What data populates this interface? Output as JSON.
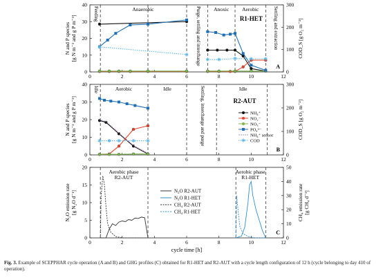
{
  "caption": {
    "bold": "Fig. 3.",
    "text": "Example of SCEPPHAR cycle operation (A and B) and GHG profiles (C) obtained for R1-HET and R2-AUT with a cycle length configuration of 12 h (cycle belonging to day 410 of operation)."
  },
  "colors": {
    "nh4": "#111111",
    "no2": "#e8432a",
    "no3": "#7ab648",
    "po4": "#1f6fb5",
    "nh4_sensor": "#b993c9",
    "cod": "#5eb7e6",
    "n2o_aut": "#333333",
    "n2o_het": "#2f8fd0"
  },
  "chart_data": [
    {
      "id": "A",
      "type": "line",
      "panel_label": "A",
      "ylabel": "N and P species\n[g N m⁻³ and g P m⁻³]",
      "y2label": "COD_S [g O₂ m⁻³]",
      "xlim": [
        0,
        12
      ],
      "ylim": [
        0,
        40
      ],
      "y2lim": [
        0,
        300
      ],
      "xticks": [
        0,
        2,
        4,
        6,
        8,
        10,
        12
      ],
      "yticks": [
        0,
        10,
        20,
        30,
        40
      ],
      "y2ticks": [
        0,
        100,
        200,
        300
      ],
      "phase_lines": [
        0.65,
        3.6,
        6,
        7.3,
        9,
        10.9
      ],
      "phase_labels": [
        {
          "text": "Feeding",
          "x": 0.3,
          "vertical": true
        },
        {
          "text": "Anaerobic",
          "x": 3.3,
          "vertical": false
        },
        {
          "text": "Purge, settling and interchange",
          "x": 6.65,
          "vertical": true
        },
        {
          "text": "Anoxic",
          "x": 8.15,
          "vertical": false
        },
        {
          "text": "Aerobic",
          "x": 9.95,
          "vertical": false
        },
        {
          "text": "Settling and extraction",
          "x": 11.45,
          "vertical": true
        }
      ],
      "reactor_label": "R1-HET",
      "series": [
        {
          "key": "nh4",
          "axis": "left",
          "x": [
            0.6,
            6.0
          ],
          "y": [
            28.5,
            30.0
          ]
        },
        {
          "key": "nh4",
          "axis": "left",
          "x": [
            7.3,
            7.9,
            8.5,
            9.0,
            9.5,
            10.0,
            10.9
          ],
          "y": [
            13.0,
            13.0,
            13.0,
            13.0,
            9.5,
            2.0,
            0.5
          ]
        },
        {
          "key": "no2",
          "axis": "left",
          "x": [
            0.6,
            1.2,
            1.8,
            2.5,
            3.6,
            6.0
          ],
          "y": [
            0.3,
            0.3,
            0.3,
            0.3,
            0.3,
            0.3
          ]
        },
        {
          "key": "no2",
          "axis": "left",
          "x": [
            7.3,
            8.0,
            8.7,
            9.0,
            9.5,
            10.0,
            10.9
          ],
          "y": [
            0.3,
            0.3,
            0.3,
            0.3,
            3.0,
            7.0,
            7.0
          ]
        },
        {
          "key": "no3",
          "axis": "left",
          "x": [
            0.6,
            1.2,
            1.8,
            2.5,
            3.6,
            6.0
          ],
          "y": [
            0.5,
            0.5,
            0.5,
            0.5,
            0.5,
            0.5
          ]
        },
        {
          "key": "no3",
          "axis": "left",
          "x": [
            7.3,
            8.0,
            9.0,
            10.0,
            10.9
          ],
          "y": [
            0.5,
            0.5,
            0.5,
            0.5,
            0.5
          ]
        },
        {
          "key": "po4",
          "axis": "left",
          "x": [
            0.6,
            1.1,
            1.6,
            2.5,
            3.6,
            6.0
          ],
          "y": [
            15.0,
            19.0,
            23.0,
            28.0,
            28.5,
            31.0
          ]
        },
        {
          "key": "po4",
          "axis": "left",
          "x": [
            7.3,
            7.8,
            8.3,
            8.7,
            9.0,
            9.5,
            10.0,
            10.9
          ],
          "y": [
            24.0,
            23.5,
            22.0,
            22.5,
            23.0,
            11.0,
            4.0,
            1.0
          ]
        },
        {
          "key": "cod",
          "axis": "right",
          "x": [
            0.6,
            6.0
          ],
          "y": [
            112,
            78
          ]
        },
        {
          "key": "cod",
          "axis": "right",
          "x": [
            7.3,
            8.0,
            9.0,
            10.0,
            10.9
          ],
          "y": [
            55,
            55,
            60,
            58,
            58
          ]
        }
      ]
    },
    {
      "id": "B",
      "type": "line",
      "panel_label": "B",
      "ylabel": "N and P species\n[g N m⁻³ and g P m⁻³]",
      "y2label": "COD_S [g O₂ m⁻³]",
      "xlim": [
        0,
        12
      ],
      "ylim": [
        0,
        40
      ],
      "y2lim": [
        0,
        300
      ],
      "xticks": [
        0,
        2,
        4,
        6,
        8,
        10,
        12
      ],
      "yticks": [
        0,
        10,
        20,
        30,
        40
      ],
      "y2ticks": [
        0,
        100,
        200,
        300
      ],
      "phase_lines": [
        0.65,
        3.6,
        6,
        7.85,
        11.0
      ],
      "phase_labels": [
        {
          "text": "Idle",
          "x": 0.3,
          "vertical": true
        },
        {
          "text": "Aerobic",
          "x": 2.1,
          "vertical": false
        },
        {
          "text": "Idle",
          "x": 4.8,
          "vertical": false
        },
        {
          "text": "Settling, interchange and purge",
          "x": 6.9,
          "vertical": true
        },
        {
          "text": "Idle",
          "x": 9.5,
          "vertical": false
        }
      ],
      "reactor_label": "R2-AUT",
      "legend": [
        {
          "key": "nh4",
          "label": "NH₄⁺",
          "marker": "circle"
        },
        {
          "key": "no2",
          "label": "NO₂⁻",
          "marker": "circle"
        },
        {
          "key": "no3",
          "label": "NO₃⁻",
          "marker": "circle"
        },
        {
          "key": "po4",
          "label": "PO₄³⁻",
          "marker": "square"
        },
        {
          "key": "nh4_sensor",
          "label": "NH₄⁺ sensor",
          "marker": "line"
        },
        {
          "key": "cod",
          "label": "COD",
          "marker": "star"
        }
      ],
      "series": [
        {
          "key": "nh4",
          "axis": "left",
          "x": [
            0.6,
            1.0,
            1.8,
            2.7,
            3.6
          ],
          "y": [
            19.5,
            18.5,
            12.0,
            5.0,
            0.5
          ]
        },
        {
          "key": "nh4_sensor",
          "axis": "left",
          "x": [
            0.6,
            1.0,
            1.8,
            2.7,
            3.6
          ],
          "y": [
            20.0,
            19.0,
            12.5,
            5.5,
            1.0
          ]
        },
        {
          "key": "no2",
          "axis": "left",
          "x": [
            0.6,
            1.2,
            1.8,
            2.7,
            3.6
          ],
          "y": [
            0.3,
            0.5,
            5.0,
            14.5,
            16.5
          ]
        },
        {
          "key": "no3",
          "axis": "left",
          "x": [
            0.6,
            1.2,
            1.8,
            2.7,
            3.6
          ],
          "y": [
            0.3,
            0.3,
            0.3,
            0.5,
            0.5
          ]
        },
        {
          "key": "po4",
          "axis": "left",
          "x": [
            0.6,
            0.9,
            1.3,
            1.8,
            2.3,
            2.8,
            3.6
          ],
          "y": [
            32.0,
            31.0,
            30.5,
            30.0,
            29.0,
            28.0,
            26.5
          ]
        },
        {
          "key": "cod",
          "axis": "right",
          "x": [
            0.6,
            1.2,
            1.8,
            2.7,
            3.6
          ],
          "y": [
            60,
            60,
            60,
            60,
            60
          ]
        }
      ]
    },
    {
      "id": "C",
      "type": "line",
      "panel_label": "C",
      "xlabel": "cycle time [h]",
      "ylabel": "N₂O emission rate\n[g N₂O d⁻¹]",
      "y2label": "CH₄ emission rate\n[g CH₄ d⁻¹]",
      "xlim": [
        0,
        12
      ],
      "ylim": [
        0,
        20
      ],
      "y2lim": [
        0,
        50
      ],
      "xticks": [
        0,
        2,
        4,
        6,
        8,
        10,
        12
      ],
      "yticks": [
        0,
        5,
        10,
        15,
        20
      ],
      "y2ticks": [
        0,
        10,
        20,
        30,
        40,
        50
      ],
      "phase_lines": [
        0.65,
        3.6,
        9.05,
        10.9
      ],
      "phase_labels": [
        {
          "text": "Aerobic phase\nR2-AUT",
          "x": 2.1,
          "vertical": false
        },
        {
          "text": "Aerobic phase\nR1-HET",
          "x": 9.95,
          "vertical": false
        }
      ],
      "legend": [
        {
          "key": "n2o_aut",
          "label": "N₂O R2-AUT",
          "style": "solid"
        },
        {
          "key": "n2o_het",
          "label": "N₂O R1-HET",
          "style": "solid"
        },
        {
          "key": "ch4_aut",
          "label": "CH₄ R2-AUT",
          "style": "dashed"
        },
        {
          "key": "ch4_het",
          "label": "CH₄ R1-HET",
          "style": "dashed"
        }
      ],
      "series": [
        {
          "key": "n2o_aut",
          "axis": "left",
          "style": "solid",
          "x": [
            0.65,
            1.0,
            1.2,
            1.4,
            1.6,
            1.8,
            2.0,
            2.2,
            2.4,
            2.6,
            2.8,
            3.0,
            3.2,
            3.4,
            3.6
          ],
          "y": [
            0,
            0,
            2.5,
            4.0,
            3.5,
            4.5,
            4.8,
            4.6,
            5.2,
            5.0,
            5.6,
            5.5,
            5.9,
            5.7,
            0
          ]
        },
        {
          "key": "ch4_aut",
          "axis": "right",
          "style": "dashed",
          "x": [
            0.65,
            0.7,
            0.8,
            0.9,
            1.0,
            1.1,
            1.3,
            1.6,
            2.0,
            2.4,
            3.0,
            3.6
          ],
          "y": [
            0,
            30,
            44,
            38,
            22,
            10,
            4,
            1,
            0,
            0,
            0,
            0
          ]
        },
        {
          "key": "n2o_het",
          "axis": "left",
          "style": "solid",
          "x": [
            9.05,
            9.4,
            9.6,
            9.8,
            9.9,
            10.0,
            10.1,
            10.3,
            10.5,
            10.7,
            10.9
          ],
          "y": [
            0,
            0.5,
            3,
            10,
            15,
            16,
            12,
            8,
            5,
            2,
            0
          ]
        },
        {
          "key": "ch4_het",
          "axis": "right",
          "style": "dashed",
          "x": [
            9.05,
            9.1,
            9.2,
            9.3,
            9.5,
            9.8,
            10.2,
            10.9
          ],
          "y": [
            0,
            30,
            18,
            8,
            3,
            1,
            0,
            0
          ]
        }
      ]
    }
  ]
}
